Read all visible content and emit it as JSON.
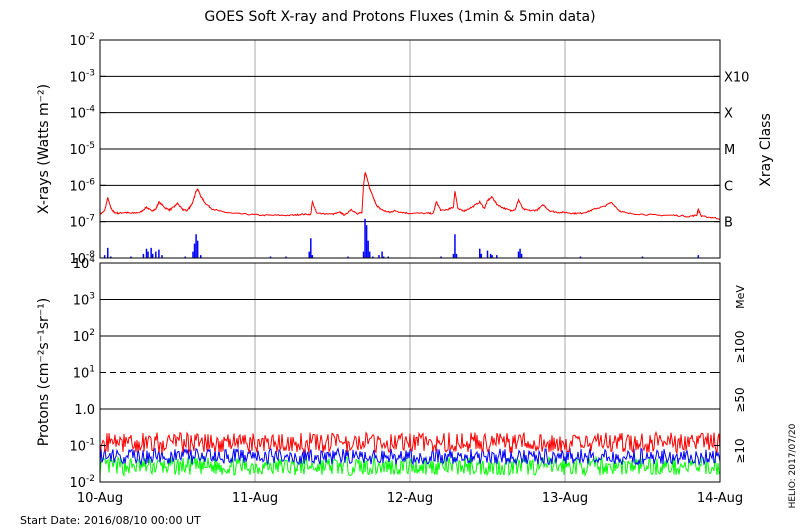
{
  "title": "GOES Soft X-ray and Protons Fluxes   (1min & 5min data)",
  "start_date": "Start Date: 2016/08/10 00:00 UT",
  "credit": "HELIO: 2017/07/20",
  "colors": {
    "xray_long": "#ff0000",
    "xray_short": "#0000ff",
    "p10": "#ff0000",
    "p50": "#0000ff",
    "p100": "#00ff00",
    "frame": "#000000",
    "day_grid": "#aaaaaa"
  },
  "chart_data": [
    {
      "type": "line",
      "panel": "xray",
      "ylabel": "X-rays (Watts m⁻²)",
      "right_label": "Xray Class",
      "yscale": "log",
      "ylim": [
        1e-08,
        0.01
      ],
      "xlim": [
        0,
        4
      ],
      "x_ticks": [
        "10-Aug",
        "11-Aug",
        "12-Aug",
        "13-Aug",
        "14-Aug"
      ],
      "y_ticks": [
        {
          "base": "10",
          "exp": "-8"
        },
        {
          "base": "10",
          "exp": "-7"
        },
        {
          "base": "10",
          "exp": "-6"
        },
        {
          "base": "10",
          "exp": "-5"
        },
        {
          "base": "10",
          "exp": "-4"
        },
        {
          "base": "10",
          "exp": "-3"
        },
        {
          "base": "10",
          "exp": "-2"
        }
      ],
      "class_labels": [
        {
          "label": "B",
          "value": 1e-07
        },
        {
          "label": "C",
          "value": 1e-06
        },
        {
          "label": "M",
          "value": 1e-05
        },
        {
          "label": "X",
          "value": 0.0001
        },
        {
          "label": "X10",
          "value": 0.001
        }
      ],
      "series": [
        {
          "key": "long",
          "x": [
            0,
            0.03,
            0.05,
            0.07,
            0.09,
            0.12,
            0.16,
            0.2,
            0.26,
            0.3,
            0.33,
            0.36,
            0.38,
            0.42,
            0.45,
            0.48,
            0.5,
            0.53,
            0.56,
            0.58,
            0.6,
            0.62,
            0.63,
            0.65,
            0.68,
            0.72,
            0.78,
            0.85,
            0.95,
            1.05,
            1.15,
            1.25,
            1.3,
            1.36,
            1.37,
            1.4,
            1.5,
            1.55,
            1.58,
            1.62,
            1.66,
            1.69,
            1.7,
            1.71,
            1.72,
            1.74,
            1.76,
            1.78,
            1.8,
            1.83,
            1.87,
            1.9,
            1.95,
            2.0,
            2.1,
            2.15,
            2.17,
            2.2,
            2.25,
            2.28,
            2.29,
            2.31,
            2.35,
            2.4,
            2.45,
            2.48,
            2.5,
            2.53,
            2.56,
            2.6,
            2.65,
            2.68,
            2.7,
            2.73,
            2.78,
            2.82,
            2.86,
            2.9,
            2.95,
            3.0,
            3.05,
            3.1,
            3.15,
            3.2,
            3.25,
            3.3,
            3.35,
            3.4,
            3.5,
            3.6,
            3.7,
            3.8,
            3.85,
            3.86,
            3.88,
            3.95,
            4.0
          ],
          "y": [
            1.6e-07,
            2e-07,
            4.5e-07,
            2.4e-07,
            1.8e-07,
            1.7e-07,
            1.8e-07,
            1.7e-07,
            1.8e-07,
            2.5e-07,
            2e-07,
            2.2e-07,
            3.5e-07,
            2.4e-07,
            2.1e-07,
            2.6e-07,
            3.2e-07,
            2.2e-07,
            2e-07,
            2.5e-07,
            3.5e-07,
            7e-07,
            8e-07,
            5e-07,
            3.2e-07,
            2.3e-07,
            1.9e-07,
            1.7e-07,
            1.6e-07,
            1.5e-07,
            1.5e-07,
            1.5e-07,
            1.6e-07,
            1.6e-07,
            3.5e-07,
            1.7e-07,
            1.6e-07,
            1.8e-07,
            1.5e-07,
            2.2e-07,
            1.6e-07,
            1.8e-07,
            1e-06,
            2.2e-06,
            1.8e-06,
            8e-07,
            5e-07,
            3e-07,
            2.4e-07,
            2e-07,
            1.8e-07,
            2e-07,
            1.8e-07,
            1.7e-07,
            1.7e-07,
            1.7e-07,
            3.5e-07,
            2e-07,
            2.2e-07,
            2.5e-07,
            7e-07,
            2.2e-07,
            2e-07,
            2.5e-07,
            3.5e-07,
            2.3e-07,
            3.8e-07,
            4.8e-07,
            3e-07,
            2.4e-07,
            2e-07,
            2.2e-07,
            4e-07,
            2.2e-07,
            2e-07,
            2.1e-07,
            2.9e-07,
            2e-07,
            1.8e-07,
            1.8e-07,
            1.7e-07,
            1.7e-07,
            1.9e-07,
            2.3e-07,
            2.6e-07,
            3.4e-07,
            2e-07,
            1.7e-07,
            1.6e-07,
            1.5e-07,
            1.5e-07,
            1.4e-07,
            1.5e-07,
            2.2e-07,
            1.4e-07,
            1.3e-07,
            1.2e-07
          ]
        },
        {
          "key": "short",
          "x": [
            0.03,
            0.05,
            0.07,
            0.2,
            0.28,
            0.3,
            0.31,
            0.33,
            0.34,
            0.36,
            0.38,
            0.4,
            0.55,
            0.6,
            0.61,
            0.62,
            0.63,
            0.65,
            1.1,
            1.2,
            1.35,
            1.36,
            1.37,
            1.6,
            1.7,
            1.71,
            1.72,
            1.73,
            1.74,
            1.76,
            1.8,
            1.82,
            1.83,
            1.86,
            2.2,
            2.28,
            2.29,
            2.3,
            2.45,
            2.46,
            2.5,
            2.52,
            2.53,
            2.56,
            2.7,
            2.71,
            2.72,
            3.1,
            3.5,
            3.86
          ],
          "y": [
            1.2e-08,
            1.9e-08,
            1.1e-08,
            1.1e-08,
            1.3e-08,
            1.8e-08,
            1.5e-08,
            1.9e-08,
            1.3e-08,
            1.5e-08,
            1.7e-08,
            1.2e-08,
            1.1e-08,
            1.5e-08,
            2.5e-08,
            4.5e-08,
            3e-08,
            1.2e-08,
            1.1e-08,
            1.1e-08,
            1.5e-08,
            3.5e-08,
            1.2e-08,
            1.1e-08,
            1.5e-08,
            1.2e-07,
            8e-08,
            3e-08,
            1.5e-08,
            1.1e-08,
            1.2e-08,
            1.5e-08,
            1.1e-08,
            1.1e-08,
            1.1e-08,
            1.3e-08,
            4.5e-08,
            1.3e-08,
            1.8e-08,
            1.3e-08,
            1.6e-08,
            1.3e-08,
            1.2e-08,
            1.2e-08,
            1.5e-08,
            1.8e-08,
            1.3e-08,
            1.1e-08,
            1.1e-08,
            1.2e-08
          ]
        }
      ]
    },
    {
      "type": "line",
      "panel": "protons",
      "ylabel": "Protons (cm⁻²s⁻¹sr⁻¹)",
      "unit_label": "MeV",
      "yscale": "log",
      "ylim": [
        0.01,
        10000
      ],
      "xlim": [
        0,
        4
      ],
      "x_ticks": [
        "10-Aug",
        "11-Aug",
        "12-Aug",
        "13-Aug",
        "14-Aug"
      ],
      "y_ticks": [
        {
          "base": "10",
          "exp": "-2"
        },
        {
          "base": "10",
          "exp": "-1"
        },
        {
          "base": "1.0",
          "exp": ""
        },
        {
          "base": "10",
          "exp": "1"
        },
        {
          "base": "10",
          "exp": "2"
        },
        {
          "base": "10",
          "exp": "3"
        },
        {
          "base": "10",
          "exp": "4"
        }
      ],
      "threshold": 10,
      "series": [
        {
          "key": "p100",
          "name": "≥100",
          "level": 0.027,
          "spread": 0.25
        },
        {
          "key": "p50",
          "name": "≥50",
          "level": 0.05,
          "spread": 0.22
        },
        {
          "key": "p10",
          "name": "≥10",
          "level": 0.12,
          "spread": 0.28
        }
      ]
    }
  ]
}
